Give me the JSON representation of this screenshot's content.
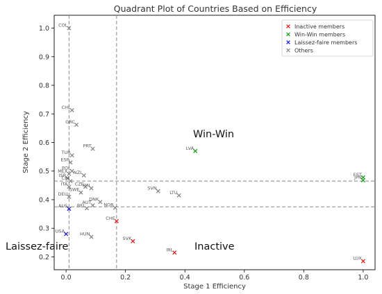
{
  "chart_data": {
    "type": "scatter",
    "title": "Quadrant Plot of Countries Based on Efficiency",
    "xlabel": "Stage 1 Efficiency",
    "ylabel": "Stage 2 Efficiency",
    "xlim": [
      -0.04,
      1.04
    ],
    "ylim": [
      0.155,
      1.045
    ],
    "x_ticks": [
      "0.0",
      "0.2",
      "0.4",
      "0.6",
      "0.8",
      "1.0"
    ],
    "x_tick_values": [
      0.0,
      0.2,
      0.4,
      0.6,
      0.8,
      1.0
    ],
    "y_ticks": [
      "0.2",
      "0.3",
      "0.4",
      "0.5",
      "0.6",
      "0.7",
      "0.8",
      "0.9",
      "1.0"
    ],
    "y_tick_values": [
      0.2,
      0.3,
      0.4,
      0.5,
      0.6,
      0.7,
      0.8,
      0.9,
      1.0
    ],
    "grid": false,
    "legend_position": "top-right",
    "thresholds": {
      "x": [
        0.01,
        0.17
      ],
      "y": [
        0.465,
        0.375
      ]
    },
    "quadrant_labels": {
      "win_win": "Win-Win",
      "inactive": "Inactive",
      "laissez_faire": "Laissez-faire"
    },
    "series": [
      {
        "name": "Inactive members",
        "color": "#e02020",
        "points": [
          {
            "label": "CHE",
            "x": 0.17,
            "y": 0.325
          },
          {
            "label": "SVK",
            "x": 0.225,
            "y": 0.255
          },
          {
            "label": "IRL",
            "x": 0.365,
            "y": 0.215
          },
          {
            "label": "LUX",
            "x": 1.0,
            "y": 0.185
          }
        ]
      },
      {
        "name": "Win-Win members",
        "color": "#1a9e1a",
        "points": [
          {
            "label": "LVA",
            "x": 0.435,
            "y": 0.57
          },
          {
            "label": "EST",
            "x": 1.0,
            "y": 0.478
          },
          {
            "label": "JPN",
            "x": 1.0,
            "y": 0.468
          }
        ]
      },
      {
        "name": "Laissez-faire members",
        "color": "#2020d0",
        "points": [
          {
            "label": "USA",
            "x": 0.0,
            "y": 0.28
          },
          {
            "label": "AUS",
            "x": 0.01,
            "y": 0.368
          }
        ]
      },
      {
        "name": "Others",
        "color": "#888888",
        "points": [
          {
            "label": "COL",
            "x": 0.01,
            "y": 1.0
          },
          {
            "label": "CHL",
            "x": 0.02,
            "y": 0.713
          },
          {
            "label": "GRC",
            "x": 0.035,
            "y": 0.662
          },
          {
            "label": "PRT",
            "x": 0.09,
            "y": 0.578
          },
          {
            "label": "TUR",
            "x": 0.02,
            "y": 0.555
          },
          {
            "label": "ESP",
            "x": 0.015,
            "y": 0.53
          },
          {
            "label": "POL",
            "x": 0.02,
            "y": 0.5
          },
          {
            "label": "MEX",
            "x": 0.01,
            "y": 0.49
          },
          {
            "label": "NZL",
            "x": 0.06,
            "y": 0.485
          },
          {
            "label": "ISR",
            "x": 0.005,
            "y": 0.475
          },
          {
            "label": "CRI",
            "x": 0.015,
            "y": 0.465
          },
          {
            "label": "ITA",
            "x": 0.01,
            "y": 0.445
          },
          {
            "label": "CZE",
            "x": 0.065,
            "y": 0.445
          },
          {
            "label": "FIN",
            "x": 0.085,
            "y": 0.44
          },
          {
            "label": "SWE",
            "x": 0.05,
            "y": 0.425
          },
          {
            "label": "DEU",
            "x": 0.01,
            "y": 0.41
          },
          {
            "label": "SVN",
            "x": 0.31,
            "y": 0.43
          },
          {
            "label": "LTU",
            "x": 0.38,
            "y": 0.415
          },
          {
            "label": "DNK",
            "x": 0.115,
            "y": 0.392
          },
          {
            "label": "AUT",
            "x": 0.09,
            "y": 0.38
          },
          {
            "label": "BEL",
            "x": 0.07,
            "y": 0.37
          },
          {
            "label": "NOR",
            "x": 0.165,
            "y": 0.372
          },
          {
            "label": "HUN",
            "x": 0.085,
            "y": 0.27
          }
        ]
      }
    ]
  }
}
